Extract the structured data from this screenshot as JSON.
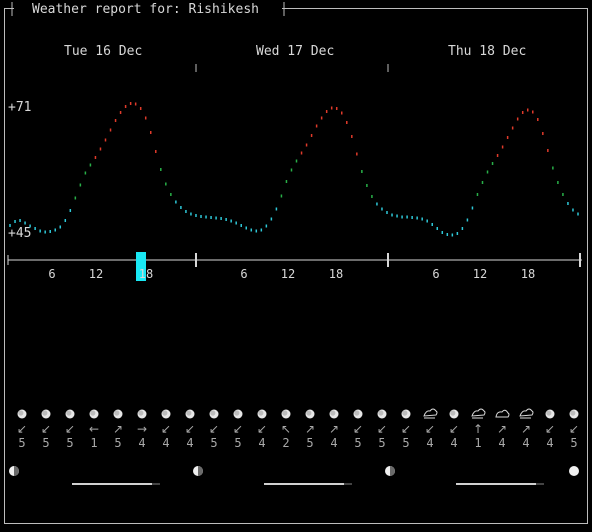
{
  "title": "Weather report for: Rishikesh",
  "days": [
    "Tue 16 Dec",
    "Wed 17 Dec",
    "Thu 18 Dec"
  ],
  "temp_labels": {
    "max": "+71",
    "min": "+45"
  },
  "hour_ticks": [
    "6",
    "12",
    "18",
    "6",
    "12",
    "18",
    "6",
    "12",
    "18"
  ],
  "current_marker_hour": "18",
  "chart_data": {
    "type": "line",
    "title": "",
    "xlabel": "",
    "ylabel": "",
    "ylim": [
      45,
      71
    ],
    "colors": {
      "cold": "#2ec8d8",
      "mild": "#28b048",
      "warm": "#e03a2a"
    },
    "series": [
      {
        "values": [
          46.5,
          47.3,
          47.5,
          47.0,
          46.4,
          45.9,
          45.4,
          45.2,
          45.3,
          45.6,
          46.2,
          47.5,
          49.5,
          52.0,
          54.6,
          57.0,
          58.6,
          60.1,
          61.8,
          63.6,
          65.6,
          67.5,
          69.1,
          70.3,
          70.9,
          70.8,
          69.9,
          68.0,
          65.1,
          61.3,
          57.7,
          54.8,
          52.7,
          51.2,
          50.1,
          49.3,
          48.8,
          48.5,
          48.3,
          48.2,
          48.1,
          48.0,
          47.9,
          47.7,
          47.4,
          47.0,
          46.5,
          46.0,
          45.6,
          45.4,
          45.6,
          46.4,
          47.8,
          49.8,
          52.4,
          55.3,
          57.6,
          59.4,
          61.0,
          62.6,
          64.5,
          66.4,
          68.0,
          69.3,
          70.0,
          69.9,
          69.0,
          67.1,
          64.3,
          60.8,
          57.3,
          54.5,
          52.3,
          50.8,
          49.8,
          49.1,
          48.6,
          48.4,
          48.2,
          48.2,
          48.1,
          48.0,
          47.8,
          47.4,
          46.7,
          45.9,
          45.1,
          44.7,
          44.6,
          44.9,
          45.9,
          47.6,
          50.0,
          52.7,
          55.1,
          57.2,
          58.9,
          60.5,
          62.2,
          64.1,
          66.0,
          67.8,
          69.1,
          69.6,
          69.2,
          67.7,
          64.9,
          61.5,
          58.0,
          55.1,
          52.7,
          50.9,
          49.6,
          48.8
        ]
      }
    ]
  },
  "forecast": [
    {
      "icon": "moon",
      "wind_dir": "↙",
      "wind": "5"
    },
    {
      "icon": "moon",
      "wind_dir": "↙",
      "wind": "5"
    },
    {
      "icon": "moon",
      "wind_dir": "↙",
      "wind": "5"
    },
    {
      "icon": "moon",
      "wind_dir": "←",
      "wind": "1"
    },
    {
      "icon": "moon",
      "wind_dir": "↗",
      "wind": "5"
    },
    {
      "icon": "moon",
      "wind_dir": "→",
      "wind": "4"
    },
    {
      "icon": "moon",
      "wind_dir": "↙",
      "wind": "4"
    },
    {
      "icon": "moon",
      "wind_dir": "↙",
      "wind": "4"
    },
    {
      "icon": "moon",
      "wind_dir": "↙",
      "wind": "5"
    },
    {
      "icon": "moon",
      "wind_dir": "↙",
      "wind": "5"
    },
    {
      "icon": "moon",
      "wind_dir": "↙",
      "wind": "4"
    },
    {
      "icon": "moon",
      "wind_dir": "↖",
      "wind": "2"
    },
    {
      "icon": "moon",
      "wind_dir": "↗",
      "wind": "5"
    },
    {
      "icon": "moon",
      "wind_dir": "↗",
      "wind": "4"
    },
    {
      "icon": "moon",
      "wind_dir": "↙",
      "wind": "5"
    },
    {
      "icon": "moon",
      "wind_dir": "↙",
      "wind": "5"
    },
    {
      "icon": "moon",
      "wind_dir": "↙",
      "wind": "5"
    },
    {
      "icon": "fog",
      "wind_dir": "↙",
      "wind": "4"
    },
    {
      "icon": "moon",
      "wind_dir": "↙",
      "wind": "4"
    },
    {
      "icon": "fog",
      "wind_dir": "↑",
      "wind": "1"
    },
    {
      "icon": "cloud",
      "wind_dir": "↗",
      "wind": "4"
    },
    {
      "icon": "fog",
      "wind_dir": "↗",
      "wind": "4"
    },
    {
      "icon": "moon",
      "wind_dir": "↙",
      "wind": "4"
    },
    {
      "icon": "moon",
      "wind_dir": "↙",
      "wind": "5"
    }
  ],
  "moon_phases": [
    "left-lit",
    "left-lit",
    "left-lit",
    "full"
  ]
}
